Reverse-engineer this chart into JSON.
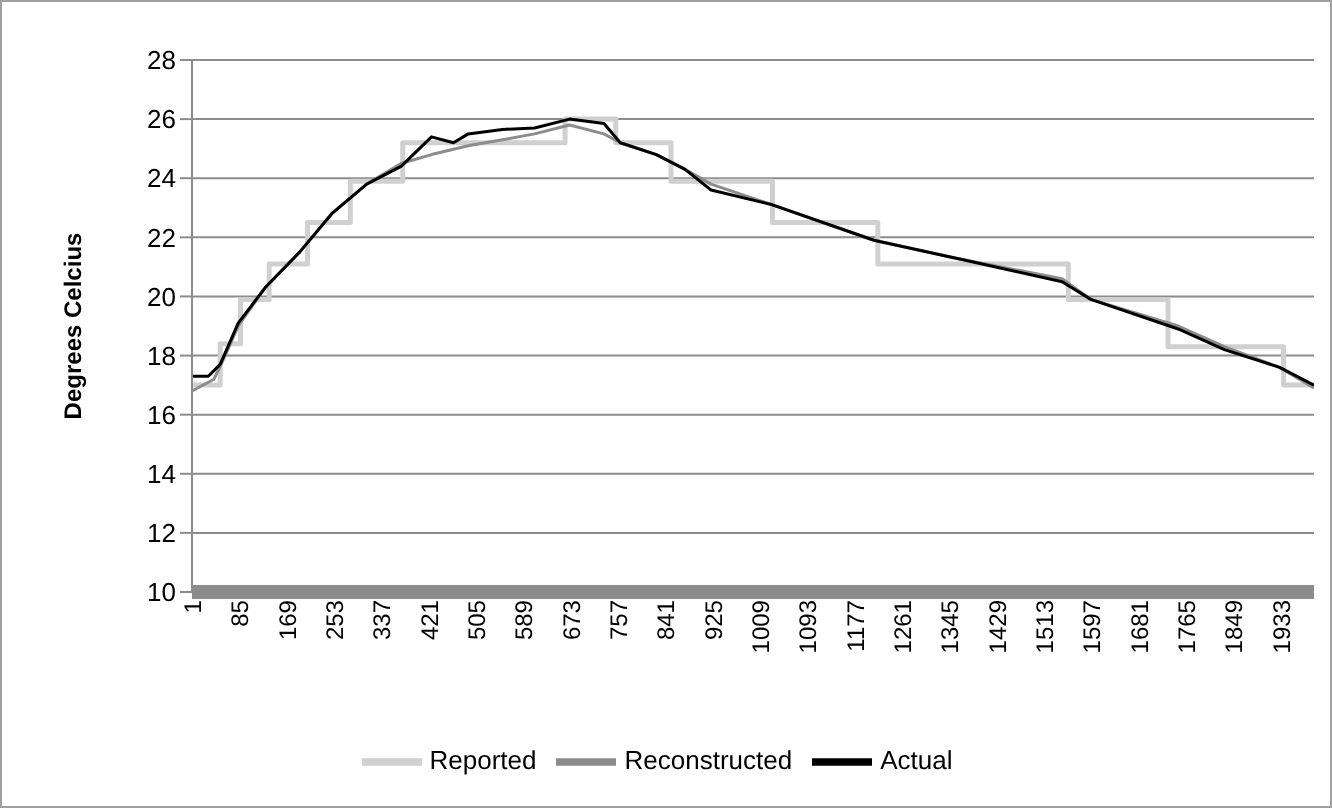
{
  "chart_data": {
    "type": "line",
    "ylabel": "Degrees Celcius",
    "xlim": [
      1,
      1992
    ],
    "xticks": [
      1,
      85,
      169,
      253,
      337,
      421,
      505,
      589,
      673,
      757,
      841,
      925,
      1009,
      1093,
      1177,
      1261,
      1345,
      1429,
      1513,
      1597,
      1681,
      1765,
      1849,
      1933
    ],
    "ylim": [
      10,
      28
    ],
    "yticks": [
      10,
      12,
      14,
      16,
      18,
      20,
      22,
      24,
      26,
      28
    ],
    "grid": "y",
    "legend": "bottom",
    "marker": "none",
    "series": [
      {
        "name": "Reported",
        "type": "step",
        "color": "#d0d0d0",
        "x": [
          1,
          51,
          87,
          138,
          206,
          282,
          375,
          663,
          753,
          851,
          1031,
          1218,
          1556,
          1733,
          1938,
          1992
        ],
        "values": [
          17.0,
          18.4,
          19.9,
          21.1,
          22.5,
          23.9,
          25.2,
          26.0,
          25.2,
          23.9,
          22.5,
          21.1,
          19.9,
          18.3,
          17.0,
          17.0
        ]
      },
      {
        "name": "Reconstructed",
        "color": "#8c8c8c",
        "x": [
          1,
          40,
          60,
          83,
          131,
          192,
          249,
          311,
          372,
          426,
          491,
          552,
          609,
          671,
          732,
          761,
          825,
          876,
          922,
          1031,
          1211,
          1355,
          1545,
          1596,
          1751,
          1833,
          1931,
          1992
        ],
        "values": [
          16.8,
          17.2,
          18.0,
          19.0,
          20.3,
          21.5,
          22.8,
          23.8,
          24.5,
          24.8,
          25.1,
          25.3,
          25.5,
          25.8,
          25.5,
          25.2,
          24.8,
          24.3,
          23.8,
          23.1,
          21.9,
          21.3,
          20.6,
          19.9,
          19.0,
          18.3,
          17.6,
          16.9
        ]
      },
      {
        "name": "Actual",
        "color": "#000000",
        "x": [
          1,
          30,
          51,
          83,
          131,
          192,
          249,
          311,
          372,
          426,
          465,
          491,
          552,
          609,
          671,
          732,
          761,
          825,
          876,
          922,
          1031,
          1211,
          1355,
          1545,
          1596,
          1751,
          1833,
          1931,
          1992
        ],
        "values": [
          17.3,
          17.3,
          17.7,
          19.1,
          20.3,
          21.5,
          22.8,
          23.8,
          24.4,
          25.4,
          25.2,
          25.5,
          25.65,
          25.7,
          26.0,
          25.85,
          25.2,
          24.8,
          24.3,
          23.6,
          23.1,
          21.9,
          21.3,
          20.5,
          19.9,
          18.9,
          18.2,
          17.6,
          17.0
        ]
      }
    ]
  }
}
